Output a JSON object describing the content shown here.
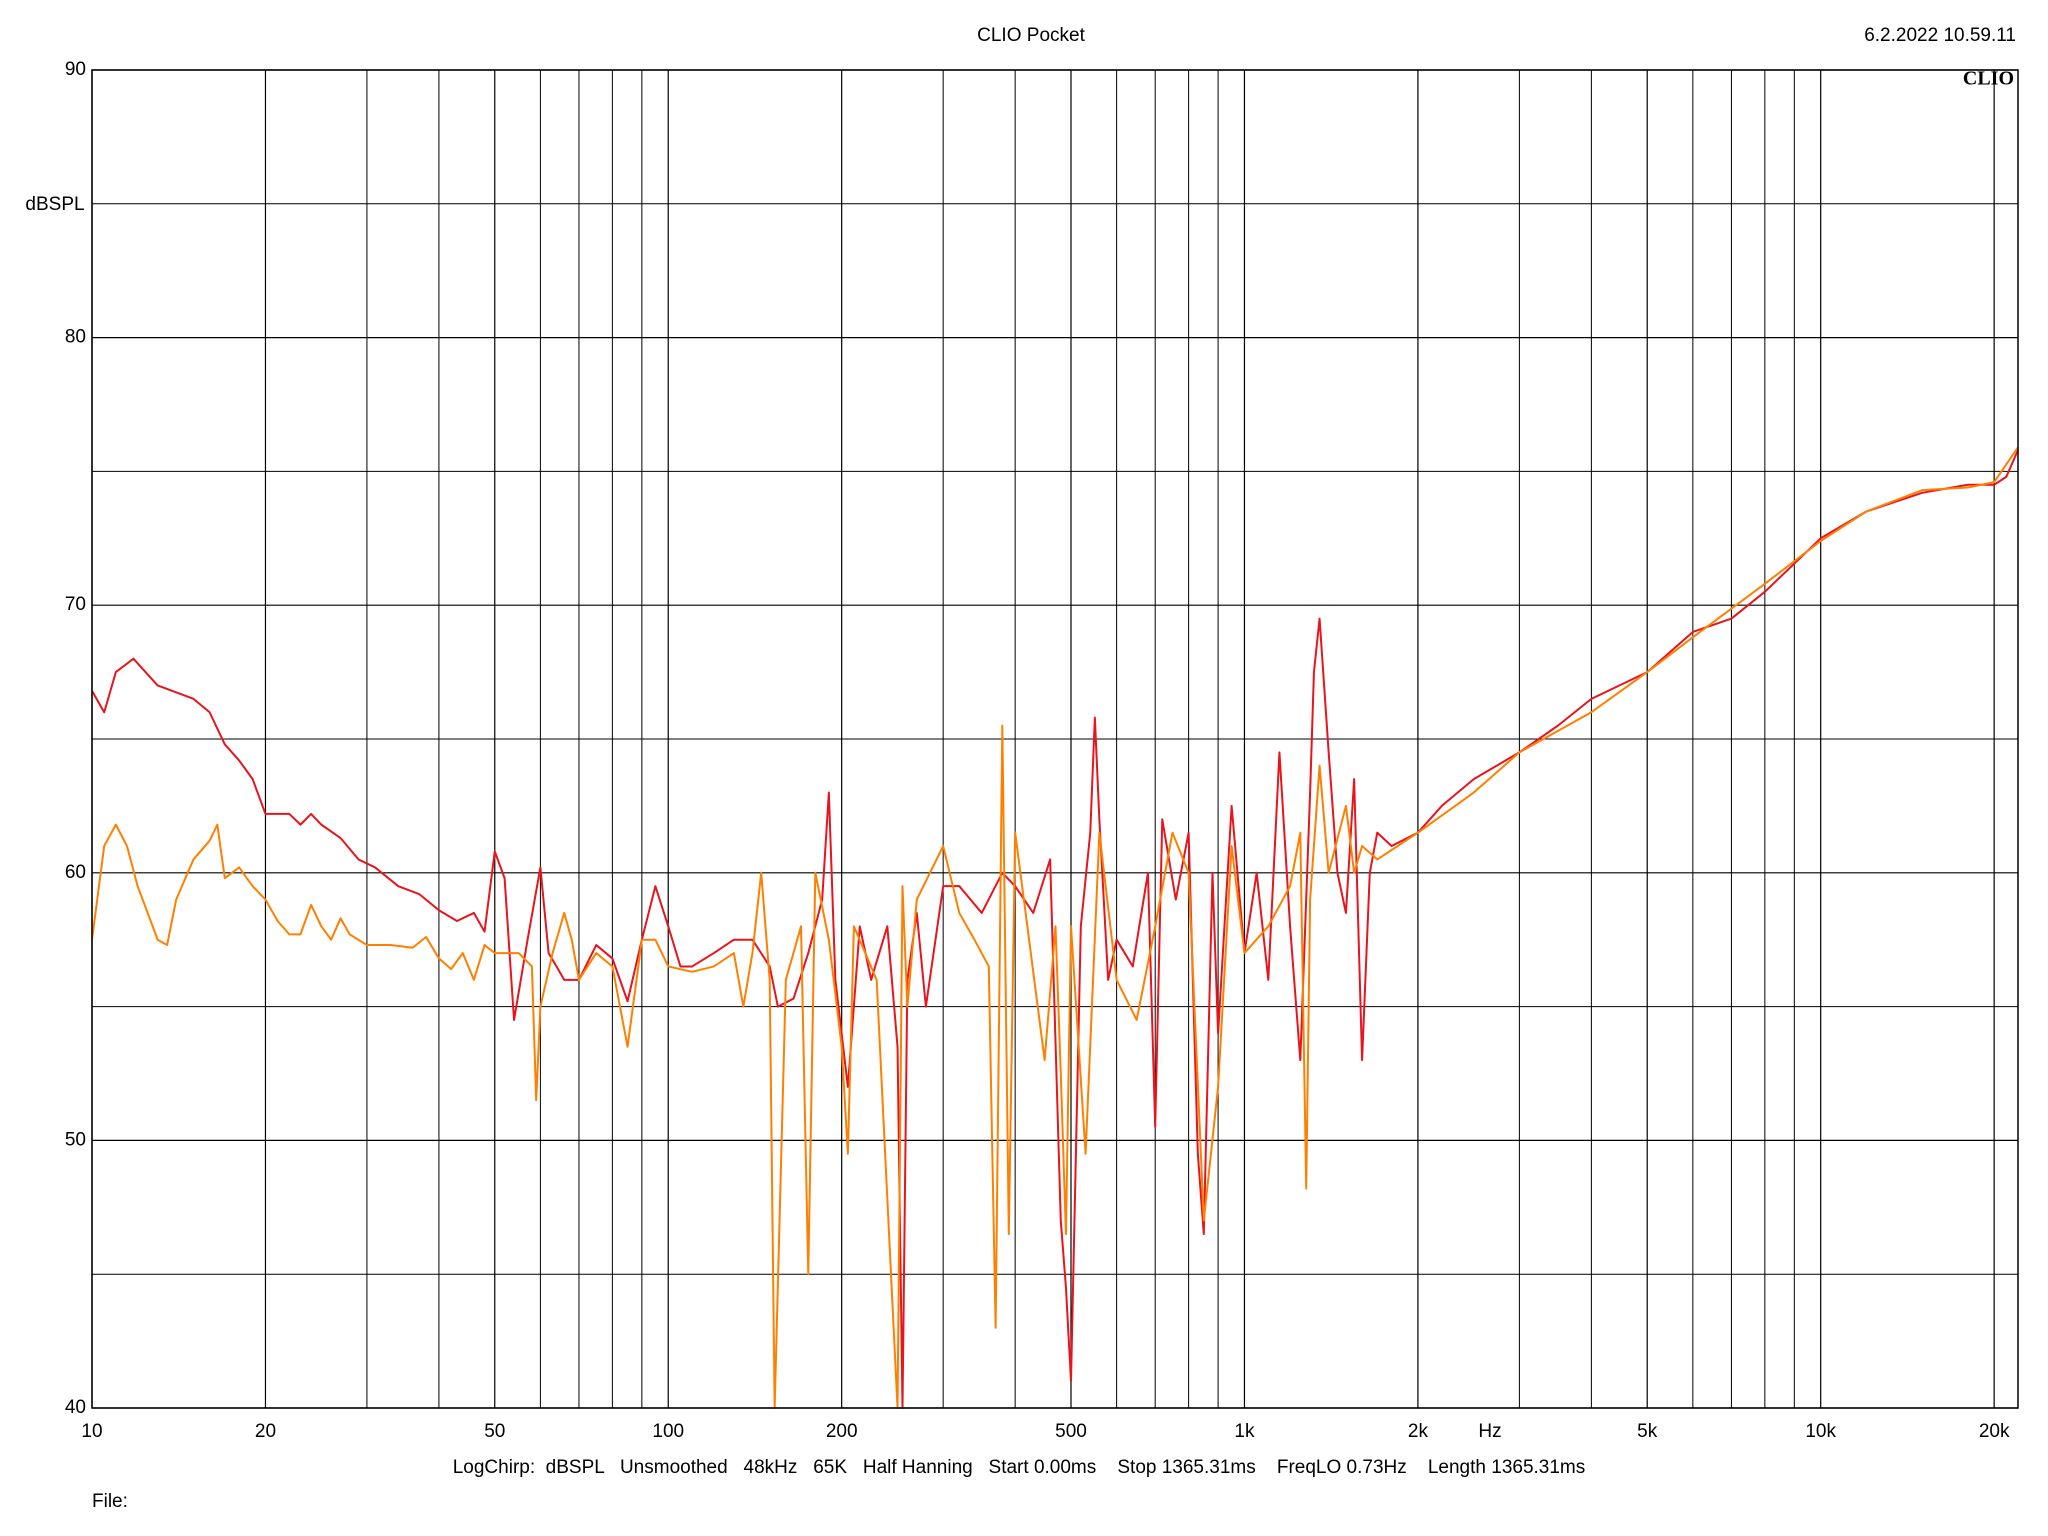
{
  "chart_data": {
    "type": "line",
    "title": "CLIO Pocket",
    "timestamp": "6.2.2022 10.59.11",
    "logo": "CLIO",
    "y_label": "dBSPL",
    "x_unit_label": "Hz",
    "footer": "LogChirp:  dBSPL   Unsmoothed   48kHz   65K   Half Hanning   Start 0.00ms    Stop 1365.31ms    FreqLO 0.73Hz    Length 1365.31ms",
    "file_label": "File:",
    "x_log": true,
    "grid": true,
    "xlim": [
      10,
      22000
    ],
    "ylim": [
      40,
      90
    ],
    "xticks": [
      10,
      20,
      50,
      100,
      200,
      500,
      {
        "value": 1000,
        "label": "1k"
      },
      {
        "value": 2000,
        "label": "2k"
      },
      {
        "value": 5000,
        "label": "5k"
      },
      {
        "value": 10000,
        "label": "10k"
      },
      {
        "value": 20000,
        "label": "20k"
      }
    ],
    "x_minor_ticks": [
      30,
      40,
      60,
      70,
      80,
      90,
      300,
      400,
      600,
      700,
      800,
      900,
      3000,
      4000,
      6000,
      7000,
      8000,
      9000
    ],
    "yticks": [
      40,
      50,
      60,
      70,
      80,
      90
    ],
    "y_minor_ticks": [
      45,
      55,
      65,
      75,
      85
    ],
    "series": [
      {
        "color": "#e8141e",
        "x": [
          10,
          10.5,
          11,
          11.8,
          13,
          15,
          16,
          17,
          18,
          19,
          20,
          22,
          23,
          24,
          25,
          27,
          29,
          31,
          34,
          37,
          40,
          43,
          46,
          48,
          50,
          52,
          54,
          57,
          60,
          62,
          64,
          66,
          70,
          75,
          80,
          85,
          90,
          95,
          100,
          105,
          110,
          120,
          130,
          140,
          150,
          155,
          165,
          175,
          185,
          190,
          195,
          205,
          215,
          225,
          240,
          250,
          255,
          260,
          270,
          280,
          300,
          320,
          350,
          380,
          400,
          430,
          460,
          480,
          490,
          500,
          520,
          540,
          550,
          560,
          580,
          600,
          640,
          680,
          700,
          720,
          760,
          800,
          830,
          850,
          880,
          900,
          950,
          1000,
          1050,
          1100,
          1150,
          1200,
          1250,
          1300,
          1320,
          1350,
          1400,
          1450,
          1500,
          1550,
          1600,
          1650,
          1700,
          1800,
          2000,
          2200,
          2500,
          3000,
          3500,
          4000,
          5000,
          6000,
          7000,
          8000,
          10000,
          12000,
          15000,
          18000,
          20000,
          21000,
          22000
        ],
        "values": [
          66.8,
          66,
          67.5,
          68,
          67,
          66.5,
          66,
          64.8,
          64.2,
          63.5,
          62.2,
          62.2,
          61.8,
          62.2,
          61.8,
          61.3,
          60.5,
          60.2,
          59.5,
          59.2,
          58.6,
          58.2,
          58.5,
          57.8,
          60.8,
          59.8,
          54.5,
          57.5,
          60.2,
          57,
          56.5,
          56,
          56,
          57.3,
          56.8,
          55.2,
          57.5,
          59.5,
          58,
          56.5,
          56.5,
          57,
          57.5,
          57.5,
          56.5,
          55,
          55.3,
          57,
          59,
          63,
          56,
          52,
          58,
          56,
          58,
          53.5,
          40,
          56,
          58.5,
          55,
          59.5,
          59.5,
          58.5,
          60,
          59.5,
          58.5,
          60.5,
          47,
          44.5,
          41,
          58,
          61.5,
          65.8,
          62,
          56,
          57.5,
          56.5,
          60,
          50.5,
          62,
          59,
          61.5,
          49.5,
          46.5,
          60,
          54,
          62.5,
          57,
          60,
          56,
          64.5,
          58,
          53,
          63,
          67.5,
          69.5,
          64.5,
          60,
          58.5,
          63.5,
          53,
          60,
          61.5,
          61,
          61.5,
          62.5,
          63.5,
          64.5,
          65.5,
          66.5,
          67.5,
          69,
          69.5,
          70.5,
          72.5,
          73.5,
          74.2,
          74.5,
          74.5,
          74.8,
          75.8
        ]
      },
      {
        "color": "#ff8000",
        "x": [
          10,
          10.5,
          11,
          11.5,
          12,
          13,
          13.5,
          14,
          15,
          16,
          16.5,
          17,
          18,
          19,
          20,
          21,
          22,
          23,
          24,
          25,
          26,
          27,
          28,
          30,
          33,
          36,
          38,
          40,
          42,
          44,
          46,
          48,
          50,
          55,
          58,
          59,
          60,
          63,
          66,
          68,
          70,
          75,
          80,
          85,
          90,
          95,
          100,
          110,
          120,
          130,
          135,
          140,
          145,
          150,
          153,
          160,
          170,
          175,
          180,
          190,
          200,
          205,
          210,
          230,
          250,
          255,
          260,
          270,
          300,
          320,
          340,
          360,
          370,
          380,
          390,
          400,
          420,
          450,
          470,
          480,
          490,
          500,
          530,
          560,
          600,
          650,
          700,
          750,
          800,
          850,
          900,
          950,
          1000,
          1100,
          1200,
          1250,
          1280,
          1300,
          1350,
          1400,
          1500,
          1550,
          1600,
          1700,
          2000,
          2500,
          3000,
          4000,
          5000,
          6000,
          8000,
          10000,
          12000,
          15000,
          18000,
          20000,
          22000
        ],
        "values": [
          57.5,
          61,
          61.8,
          61,
          59.5,
          57.5,
          57.3,
          59,
          60.5,
          61.2,
          61.8,
          59.8,
          60.2,
          59.5,
          59,
          58.2,
          57.7,
          57.7,
          58.8,
          58,
          57.5,
          58.3,
          57.7,
          57.3,
          57.3,
          57.2,
          57.6,
          56.8,
          56.4,
          57,
          56,
          57.3,
          57,
          57,
          56.5,
          51.5,
          55,
          57,
          58.5,
          57.5,
          56,
          57,
          56.5,
          53.5,
          57.5,
          57.5,
          56.5,
          56.3,
          56.5,
          57,
          55,
          57,
          60,
          56,
          40,
          56,
          58,
          45,
          60,
          57.5,
          53.5,
          49.5,
          58,
          56,
          40,
          59.5,
          55,
          59,
          61,
          58.5,
          57.5,
          56.5,
          43,
          65.5,
          46.5,
          61.5,
          58,
          53,
          58,
          52.5,
          46.5,
          58,
          49.5,
          61.5,
          56,
          54.5,
          58,
          61.5,
          60,
          47,
          52,
          61,
          57,
          58,
          59.5,
          61.5,
          48.2,
          59,
          64,
          60,
          62.5,
          60,
          61,
          60.5,
          61.5,
          63,
          64.5,
          66,
          67.5,
          68.8,
          70.8,
          72.4,
          73.5,
          74.3,
          74.4,
          74.6,
          75.9
        ]
      }
    ]
  }
}
